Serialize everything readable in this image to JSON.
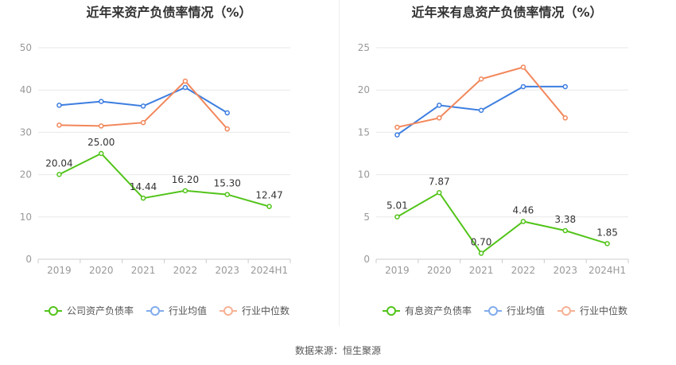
{
  "chart_data": [
    {
      "type": "line",
      "title": "近年来资产负债率情况（%）",
      "categories": [
        "2019",
        "2020",
        "2021",
        "2022",
        "2023",
        "2024H1"
      ],
      "ylim": [
        0,
        50
      ],
      "yticks": [
        0,
        10,
        20,
        30,
        40,
        50
      ],
      "grid": true,
      "legend_position": "bottom",
      "series": [
        {
          "name": "公司资产负债率",
          "color": "#52c41a",
          "values": [
            20.04,
            25.0,
            14.44,
            16.2,
            15.3,
            12.47
          ],
          "labels": [
            "20.04",
            "25.00",
            "14.44",
            "16.20",
            "15.30",
            "12.47"
          ]
        },
        {
          "name": "行业均值",
          "color": "#3d7ee0",
          "values": [
            36.4,
            37.3,
            36.2,
            40.6,
            34.6,
            null
          ]
        },
        {
          "name": "行业中位数",
          "color": "#f2875b",
          "values": [
            31.7,
            31.5,
            32.3,
            42.1,
            30.8,
            null
          ]
        }
      ]
    },
    {
      "type": "line",
      "title": "近年来有息资产负债率情况（%）",
      "categories": [
        "2019",
        "2020",
        "2021",
        "2022",
        "2023",
        "2024H1"
      ],
      "ylim": [
        0,
        25
      ],
      "yticks": [
        0,
        5,
        10,
        15,
        20,
        25
      ],
      "grid": true,
      "legend_position": "bottom",
      "series": [
        {
          "name": "有息资产负债率",
          "color": "#52c41a",
          "values": [
            5.01,
            7.87,
            0.7,
            4.46,
            3.38,
            1.85
          ],
          "labels": [
            "5.01",
            "7.87",
            "0.70",
            "4.46",
            "3.38",
            "1.85"
          ]
        },
        {
          "name": "行业均值",
          "color": "#3d7ee0",
          "values": [
            14.7,
            18.2,
            17.6,
            20.4,
            20.4,
            null
          ]
        },
        {
          "name": "行业中位数",
          "color": "#f2875b",
          "values": [
            15.6,
            16.7,
            21.3,
            22.7,
            16.7,
            null
          ]
        }
      ]
    }
  ],
  "footer": {
    "source": "数据来源：恒生聚源"
  }
}
